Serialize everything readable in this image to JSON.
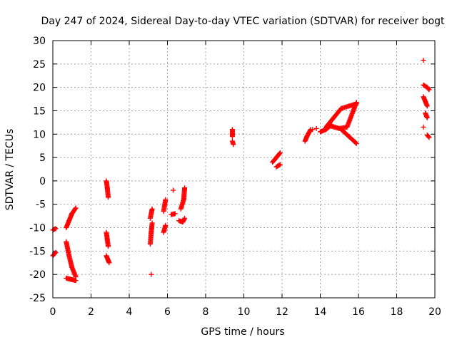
{
  "chart_data": {
    "type": "scatter",
    "title": "Day 247 of 2024, Sidereal Day-to-day VTEC variation (SDTVAR) for receiver bogt",
    "xlabel": "GPS time / hours",
    "ylabel": "SDTVAR / TECUs",
    "xlim": [
      0,
      20
    ],
    "ylim": [
      -25,
      30
    ],
    "x_ticks": [
      0,
      2,
      4,
      6,
      8,
      10,
      12,
      14,
      16,
      18,
      20
    ],
    "y_ticks": [
      -25,
      -20,
      -15,
      -10,
      -5,
      0,
      5,
      10,
      15,
      20,
      25,
      30
    ],
    "grid": true,
    "marker": "plus",
    "color": "#ff0000",
    "segments": [
      [
        [
          0.0,
          -10.5
        ],
        [
          0.15,
          -10.2
        ]
      ],
      [
        [
          0.0,
          -16.0
        ],
        [
          0.15,
          -15.3
        ]
      ],
      [
        [
          0.7,
          -10.0
        ],
        [
          0.85,
          -8.5
        ],
        [
          1.0,
          -7.0
        ],
        [
          1.2,
          -5.8
        ]
      ],
      [
        [
          0.7,
          -13.0
        ],
        [
          0.85,
          -16.0
        ],
        [
          1.0,
          -18.5
        ],
        [
          1.2,
          -20.5
        ]
      ],
      [
        [
          0.7,
          -20.8
        ],
        [
          0.9,
          -21.0
        ],
        [
          1.2,
          -21.3
        ]
      ],
      [
        [
          2.8,
          0.0
        ],
        [
          2.85,
          -1.5
        ],
        [
          2.9,
          -3.5
        ]
      ],
      [
        [
          2.8,
          -11.0
        ],
        [
          2.85,
          -12.5
        ],
        [
          2.9,
          -14.0
        ]
      ],
      [
        [
          2.8,
          -16.0
        ],
        [
          2.9,
          -17.0
        ],
        [
          2.95,
          -17.5
        ]
      ],
      [
        [
          5.1,
          -13.5
        ],
        [
          5.15,
          -11.0
        ],
        [
          5.2,
          -9.0
        ]
      ],
      [
        [
          5.1,
          -8.0
        ],
        [
          5.2,
          -6.0
        ]
      ],
      [
        [
          5.8,
          -6.5
        ],
        [
          5.9,
          -4.0
        ]
      ],
      [
        [
          5.8,
          -11.0
        ],
        [
          5.9,
          -9.5
        ]
      ],
      [
        [
          6.2,
          -7.2
        ],
        [
          6.4,
          -7.0
        ]
      ],
      [
        [
          6.6,
          -8.5
        ],
        [
          6.8,
          -8.8
        ],
        [
          6.9,
          -8.0
        ]
      ],
      [
        [
          6.7,
          -6.0
        ],
        [
          6.85,
          -4.0
        ],
        [
          6.9,
          -1.5
        ]
      ],
      [
        [
          9.4,
          11.0
        ],
        [
          9.4,
          9.5
        ]
      ],
      [
        [
          9.4,
          8.5
        ],
        [
          9.45,
          7.8
        ]
      ],
      [
        [
          11.5,
          4.0
        ],
        [
          11.7,
          5.0
        ],
        [
          11.9,
          6.0
        ]
      ],
      [
        [
          11.7,
          3.0
        ],
        [
          11.9,
          3.5
        ]
      ],
      [
        [
          13.2,
          8.5
        ],
        [
          13.3,
          9.5
        ],
        [
          13.5,
          11.0
        ]
      ],
      [
        [
          14.0,
          10.5
        ],
        [
          14.3,
          11.0
        ],
        [
          14.6,
          12.0
        ]
      ],
      [
        [
          14.3,
          11.5
        ],
        [
          14.7,
          13.5
        ],
        [
          15.1,
          15.5
        ],
        [
          15.5,
          16.0
        ],
        [
          15.9,
          16.5
        ]
      ],
      [
        [
          14.5,
          11.8
        ],
        [
          15.0,
          11.2
        ],
        [
          15.4,
          11.5
        ],
        [
          15.9,
          16.8
        ]
      ],
      [
        [
          15.1,
          11.0
        ],
        [
          15.5,
          9.5
        ],
        [
          15.9,
          8.0
        ]
      ],
      [
        [
          19.4,
          25.8
        ]
      ],
      [
        [
          19.4,
          20.5
        ],
        [
          19.6,
          20.0
        ],
        [
          19.7,
          19.5
        ]
      ],
      [
        [
          19.4,
          18.0
        ],
        [
          19.5,
          17.0
        ],
        [
          19.6,
          16.0
        ]
      ],
      [
        [
          19.5,
          14.5
        ],
        [
          19.6,
          13.5
        ]
      ],
      [
        [
          19.4,
          11.5
        ]
      ],
      [
        [
          19.6,
          9.8
        ],
        [
          19.7,
          9.3
        ]
      ]
    ],
    "points": [
      [
        5.15,
        -20.0
      ],
      [
        13.6,
        11.0
      ],
      [
        13.8,
        11.2
      ],
      [
        6.3,
        -2.0
      ]
    ]
  }
}
